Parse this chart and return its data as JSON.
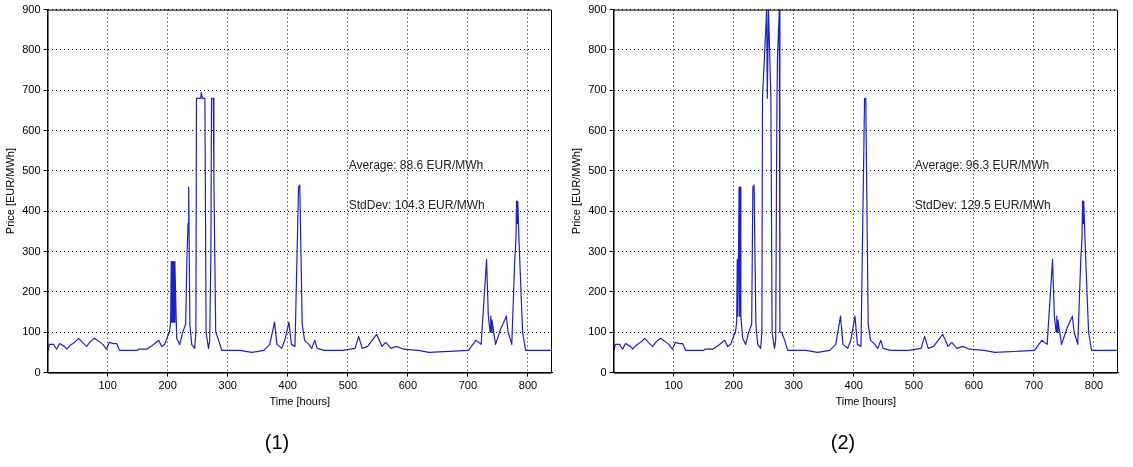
{
  "chart_data": [
    {
      "type": "line",
      "title": "(1)",
      "xlabel": "Time [hours]",
      "ylabel": "Price [EUR/MWh]",
      "annotations": [
        "Average: 88.6 EUR/MWh",
        "StdDev: 104.3 EUR/MWh"
      ],
      "marker": "none",
      "grid": true,
      "xlim": [
        0,
        840
      ],
      "ylim": [
        0,
        900
      ],
      "xticks": [
        100,
        200,
        300,
        400,
        500,
        600,
        700,
        800
      ],
      "yticks": [
        0,
        100,
        200,
        300,
        400,
        500,
        600,
        700,
        800,
        900
      ],
      "x": [
        1,
        3,
        10,
        15,
        20,
        28,
        32,
        38,
        45,
        52,
        58,
        65,
        72,
        78,
        85,
        92,
        98,
        103,
        110,
        115,
        120,
        150,
        152,
        165,
        175,
        185,
        190,
        195,
        200,
        203,
        205,
        206,
        207,
        208,
        209,
        210,
        211,
        212,
        215,
        220,
        225,
        230,
        232,
        234,
        235,
        237,
        240,
        245,
        247,
        248,
        255,
        256,
        258,
        262,
        264,
        268,
        270,
        272,
        273,
        276,
        277,
        280,
        285,
        290,
        320,
        340,
        360,
        370,
        378,
        382,
        390,
        395,
        402,
        406,
        412,
        418,
        420,
        424,
        428,
        435,
        440,
        445,
        449,
        461,
        491,
        512,
        518,
        524,
        533,
        548,
        557,
        563,
        572,
        581,
        593,
        617,
        635,
        701,
        713,
        722,
        731,
        734,
        737,
        738,
        739,
        740,
        746,
        755,
        764,
        767,
        773,
        778,
        780,
        781,
        782,
        783,
        785,
        791,
        796,
        840
      ],
      "series": [
        {
          "color": "#1f1fd0",
          "values": [
            55,
            70,
            70,
            58,
            72,
            65,
            58,
            68,
            75,
            85,
            75,
            65,
            78,
            85,
            78,
            70,
            58,
            75,
            72,
            72,
            55,
            55,
            58,
            58,
            68,
            80,
            65,
            70,
            90,
            100,
            125,
            275,
            125,
            275,
            125,
            275,
            125,
            275,
            85,
            70,
            100,
            120,
            280,
            370,
            460,
            120,
            70,
            60,
            100,
            680,
            680,
            695,
            680,
            680,
            100,
            60,
            80,
            300,
            680,
            680,
            480,
            100,
            80,
            55,
            55,
            50,
            55,
            70,
            125,
            70,
            60,
            80,
            125,
            70,
            65,
            460,
            465,
            120,
            80,
            70,
            60,
            80,
            60,
            55,
            55,
            60,
            90,
            60,
            65,
            95,
            65,
            75,
            60,
            65,
            58,
            55,
            50,
            55,
            80,
            70,
            280,
            140,
            100,
            140,
            100,
            130,
            70,
            110,
            140,
            100,
            70,
            280,
            330,
            425,
            370,
            425,
            330,
            100,
            55,
            55
          ]
        }
      ]
    },
    {
      "type": "line",
      "title": "(2)",
      "xlabel": "Time [hours]",
      "ylabel": "Price [EUR/MWh]",
      "annotations": [
        "Average: 96.3 EUR/MWh",
        "StdDev: 129.5 EUR/MWh"
      ],
      "marker": "none",
      "grid": true,
      "xlim": [
        0,
        840
      ],
      "ylim": [
        0,
        900
      ],
      "xticks": [
        100,
        200,
        300,
        400,
        500,
        600,
        700,
        800
      ],
      "yticks": [
        0,
        100,
        200,
        300,
        400,
        500,
        600,
        700,
        800,
        900
      ],
      "x": [
        1,
        3,
        10,
        15,
        20,
        28,
        32,
        38,
        45,
        52,
        58,
        65,
        72,
        78,
        85,
        92,
        98,
        103,
        110,
        115,
        120,
        150,
        152,
        165,
        175,
        185,
        190,
        195,
        200,
        203,
        205,
        206,
        207,
        208,
        209,
        210,
        211,
        212,
        215,
        220,
        225,
        230,
        232,
        234,
        235,
        237,
        240,
        245,
        247,
        248,
        255,
        256,
        258,
        262,
        264,
        268,
        270,
        272,
        273,
        276,
        277,
        280,
        285,
        290,
        320,
        340,
        360,
        370,
        378,
        382,
        390,
        395,
        402,
        406,
        412,
        418,
        420,
        424,
        428,
        435,
        440,
        445,
        449,
        461,
        491,
        512,
        518,
        524,
        533,
        548,
        557,
        563,
        572,
        581,
        593,
        617,
        635,
        701,
        713,
        722,
        731,
        734,
        737,
        738,
        739,
        740,
        746,
        755,
        764,
        767,
        773,
        778,
        780,
        781,
        782,
        783,
        785,
        791,
        796,
        840
      ],
      "series": [
        {
          "color": "#1f1fd0",
          "values": [
            55,
            70,
            70,
            58,
            72,
            65,
            58,
            68,
            75,
            85,
            75,
            65,
            78,
            85,
            78,
            70,
            58,
            75,
            72,
            72,
            55,
            55,
            58,
            58,
            68,
            80,
            65,
            70,
            90,
            100,
            125,
            280,
            140,
            280,
            460,
            140,
            460,
            140,
            85,
            70,
            100,
            120,
            460,
            465,
            465,
            120,
            70,
            60,
            100,
            680,
            900,
            680,
            900,
            680,
            100,
            60,
            80,
            660,
            780,
            900,
            100,
            100,
            80,
            55,
            55,
            50,
            55,
            70,
            140,
            70,
            60,
            80,
            140,
            70,
            65,
            680,
            680,
            120,
            80,
            70,
            60,
            80,
            60,
            55,
            55,
            60,
            90,
            60,
            65,
            95,
            65,
            75,
            60,
            65,
            58,
            55,
            50,
            55,
            80,
            70,
            280,
            140,
            100,
            140,
            100,
            130,
            70,
            110,
            140,
            100,
            70,
            280,
            330,
            425,
            370,
            425,
            330,
            100,
            55,
            55
          ]
        }
      ]
    }
  ]
}
